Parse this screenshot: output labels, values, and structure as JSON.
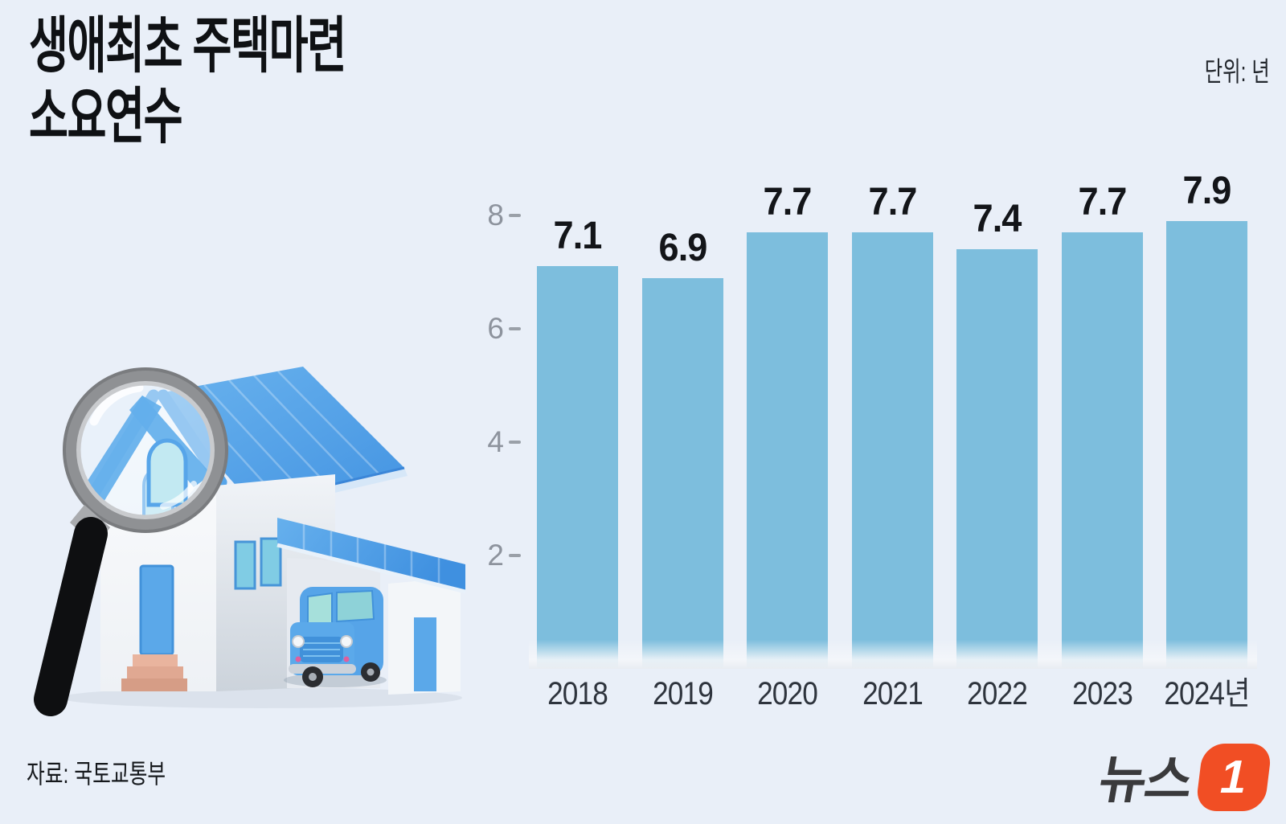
{
  "header": {
    "title_line1": "생애최초 주택마련",
    "title_line2": "소요연수",
    "unit_label": "단위: 년"
  },
  "chart_data": {
    "type": "bar",
    "title": "생애최초 주택마련 소요연수",
    "unit": "년",
    "categories": [
      "2018",
      "2019",
      "2020",
      "2021",
      "2022",
      "2023",
      "2024년"
    ],
    "values": [
      7.1,
      6.9,
      7.7,
      7.7,
      7.4,
      7.7,
      7.9
    ],
    "value_labels": [
      "7.1",
      "6.9",
      "7.7",
      "7.7",
      "7.4",
      "7.7",
      "7.9"
    ],
    "yticks": [
      2,
      4,
      6,
      8
    ],
    "ylim": [
      0,
      8.5
    ],
    "grid": false,
    "legend": false,
    "bar_color": "#7dbedd",
    "axis_text_color": "#8d939d",
    "value_text_color": "#131519",
    "xlabel_text_color": "#2e343d"
  },
  "illustration": {
    "description": "magnifying-glass-over-house-with-carport-and-car"
  },
  "footer": {
    "source": "자료: 국토교통부",
    "logo_text": "뉴스",
    "logo_number": "1",
    "logo_color": "#f14e24"
  },
  "colors": {
    "background": "#e9eff8",
    "roof_blue": "#4da0e8",
    "logo_orange": "#f14e24"
  }
}
